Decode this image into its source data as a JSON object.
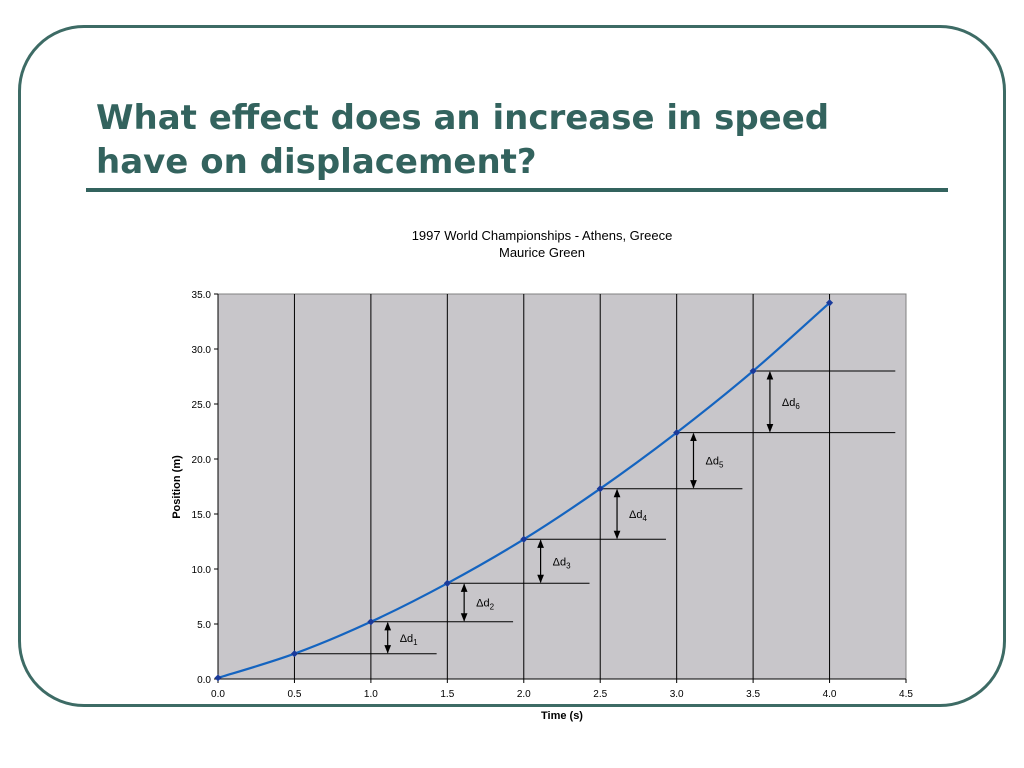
{
  "slide": {
    "title_line1": "What effect does an increase in speed",
    "title_line2": "have on displacement?"
  },
  "colors": {
    "frame": "#3d6b65",
    "title": "#33635e",
    "plot_background": "#c8c6ca",
    "curve": "#1464c0",
    "point_marker": "#1a3a9a"
  },
  "chart_data": {
    "type": "line",
    "title": "1997 World Championships - Athens, Greece",
    "subtitle": "Maurice Green",
    "xlabel": "Time (s)",
    "ylabel": "Position (m)",
    "xlim": [
      0,
      4.5
    ],
    "ylim": [
      0,
      35
    ],
    "x_ticks": [
      "0.0",
      "0.5",
      "1.0",
      "1.5",
      "2.0",
      "2.5",
      "3.0",
      "3.5",
      "4.0",
      "4.5"
    ],
    "y_ticks": [
      "0.0",
      "5.0",
      "10.0",
      "15.0",
      "20.0",
      "25.0",
      "30.0",
      "35.0"
    ],
    "grid": "vertical lines at every x tick",
    "series": [
      {
        "x": [
          0,
          0.5,
          1.0,
          1.5,
          2.0,
          2.5,
          3.0,
          3.5,
          4.0
        ],
        "y": [
          0.1,
          2.3,
          5.2,
          8.7,
          12.7,
          17.3,
          22.4,
          28.0,
          34.2
        ]
      }
    ],
    "annotations": [
      {
        "label": "Δd",
        "sub": "1",
        "from_y": 2.3,
        "to_y": 5.2,
        "arrow_x": 1.11,
        "line_end_x": 1.43
      },
      {
        "label": "Δd",
        "sub": "2",
        "from_y": 5.2,
        "to_y": 8.7,
        "arrow_x": 1.61,
        "line_end_x": 1.93
      },
      {
        "label": "Δd",
        "sub": "3",
        "from_y": 8.7,
        "to_y": 12.7,
        "arrow_x": 2.11,
        "line_end_x": 2.43
      },
      {
        "label": "Δd",
        "sub": "4",
        "from_y": 12.7,
        "to_y": 17.3,
        "arrow_x": 2.61,
        "line_end_x": 2.93
      },
      {
        "label": "Δd",
        "sub": "5",
        "from_y": 17.3,
        "to_y": 22.4,
        "arrow_x": 3.11,
        "line_end_x": 3.43
      },
      {
        "label": "Δd",
        "sub": "6",
        "from_y": 22.4,
        "to_y": 28.0,
        "arrow_x": 3.61,
        "line_end_x": 4.43
      }
    ]
  }
}
